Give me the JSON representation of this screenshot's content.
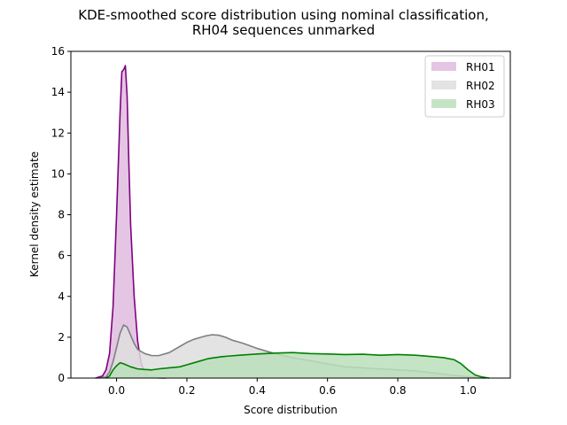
{
  "chart_data": {
    "type": "area",
    "title_lines": [
      "KDE-smoothed score distribution using nominal classification,",
      "RH04 sequences unmarked"
    ],
    "xlabel": "Score distribution",
    "ylabel": "Kernel density estimate",
    "xlim": [
      -0.13,
      1.12
    ],
    "ylim": [
      0,
      16
    ],
    "xticks": [
      0.0,
      0.2,
      0.4,
      0.6,
      0.8,
      1.0
    ],
    "xtick_labels": [
      "0.0",
      "0.2",
      "0.4",
      "0.6",
      "0.8",
      "1.0"
    ],
    "yticks": [
      0,
      2,
      4,
      6,
      8,
      10,
      12,
      14,
      16
    ],
    "ytick_labels": [
      "0",
      "2",
      "4",
      "6",
      "8",
      "10",
      "12",
      "14",
      "16"
    ],
    "grid": false,
    "legend_position": "top-right",
    "series": [
      {
        "name": "RH01",
        "line_color": "#800080",
        "fill_color": "#dfbbdf",
        "points": [
          [
            -0.06,
            0
          ],
          [
            -0.04,
            0.1
          ],
          [
            -0.03,
            0.4
          ],
          [
            -0.02,
            1.2
          ],
          [
            -0.01,
            3.5
          ],
          [
            0.0,
            8.0
          ],
          [
            0.01,
            13.0
          ],
          [
            0.015,
            15.0
          ],
          [
            0.02,
            15.1
          ],
          [
            0.025,
            15.3
          ],
          [
            0.03,
            13.8
          ],
          [
            0.035,
            10.5
          ],
          [
            0.04,
            7.5
          ],
          [
            0.05,
            4.0
          ],
          [
            0.06,
            1.8
          ],
          [
            0.07,
            0.7
          ],
          [
            0.08,
            0.3
          ],
          [
            0.09,
            0.1
          ],
          [
            0.1,
            0.03
          ],
          [
            0.12,
            0.01
          ],
          [
            0.14,
            0
          ]
        ]
      },
      {
        "name": "RH02",
        "line_color": "#808080",
        "fill_color": "#dedede",
        "points": [
          [
            -0.05,
            0
          ],
          [
            -0.03,
            0.05
          ],
          [
            -0.02,
            0.3
          ],
          [
            -0.01,
            0.8
          ],
          [
            0.0,
            1.5
          ],
          [
            0.01,
            2.2
          ],
          [
            0.02,
            2.6
          ],
          [
            0.03,
            2.5
          ],
          [
            0.04,
            2.1
          ],
          [
            0.05,
            1.7
          ],
          [
            0.06,
            1.4
          ],
          [
            0.08,
            1.2
          ],
          [
            0.1,
            1.1
          ],
          [
            0.12,
            1.1
          ],
          [
            0.15,
            1.25
          ],
          [
            0.18,
            1.55
          ],
          [
            0.2,
            1.75
          ],
          [
            0.22,
            1.9
          ],
          [
            0.25,
            2.05
          ],
          [
            0.27,
            2.12
          ],
          [
            0.29,
            2.1
          ],
          [
            0.31,
            2.0
          ],
          [
            0.33,
            1.85
          ],
          [
            0.36,
            1.7
          ],
          [
            0.4,
            1.45
          ],
          [
            0.45,
            1.2
          ],
          [
            0.5,
            1.0
          ],
          [
            0.55,
            0.85
          ],
          [
            0.6,
            0.7
          ],
          [
            0.65,
            0.55
          ],
          [
            0.7,
            0.5
          ],
          [
            0.75,
            0.45
          ],
          [
            0.8,
            0.4
          ],
          [
            0.85,
            0.35
          ],
          [
            0.9,
            0.25
          ],
          [
            0.95,
            0.15
          ],
          [
            1.0,
            0.07
          ],
          [
            1.03,
            0.02
          ],
          [
            1.05,
            0
          ]
        ]
      },
      {
        "name": "RH03",
        "line_color": "#008000",
        "fill_color": "#bbdfbb",
        "points": [
          [
            -0.03,
            0
          ],
          [
            -0.02,
            0.1
          ],
          [
            -0.01,
            0.4
          ],
          [
            0.0,
            0.6
          ],
          [
            0.01,
            0.75
          ],
          [
            0.02,
            0.7
          ],
          [
            0.04,
            0.55
          ],
          [
            0.06,
            0.45
          ],
          [
            0.08,
            0.42
          ],
          [
            0.1,
            0.4
          ],
          [
            0.12,
            0.45
          ],
          [
            0.15,
            0.5
          ],
          [
            0.18,
            0.55
          ],
          [
            0.2,
            0.65
          ],
          [
            0.23,
            0.8
          ],
          [
            0.26,
            0.95
          ],
          [
            0.3,
            1.05
          ],
          [
            0.35,
            1.12
          ],
          [
            0.4,
            1.18
          ],
          [
            0.45,
            1.22
          ],
          [
            0.5,
            1.25
          ],
          [
            0.55,
            1.2
          ],
          [
            0.6,
            1.18
          ],
          [
            0.65,
            1.15
          ],
          [
            0.7,
            1.17
          ],
          [
            0.75,
            1.12
          ],
          [
            0.8,
            1.15
          ],
          [
            0.85,
            1.12
          ],
          [
            0.9,
            1.05
          ],
          [
            0.93,
            1.0
          ],
          [
            0.96,
            0.9
          ],
          [
            0.98,
            0.7
          ],
          [
            1.0,
            0.4
          ],
          [
            1.02,
            0.15
          ],
          [
            1.04,
            0.05
          ],
          [
            1.06,
            0
          ]
        ]
      }
    ]
  }
}
